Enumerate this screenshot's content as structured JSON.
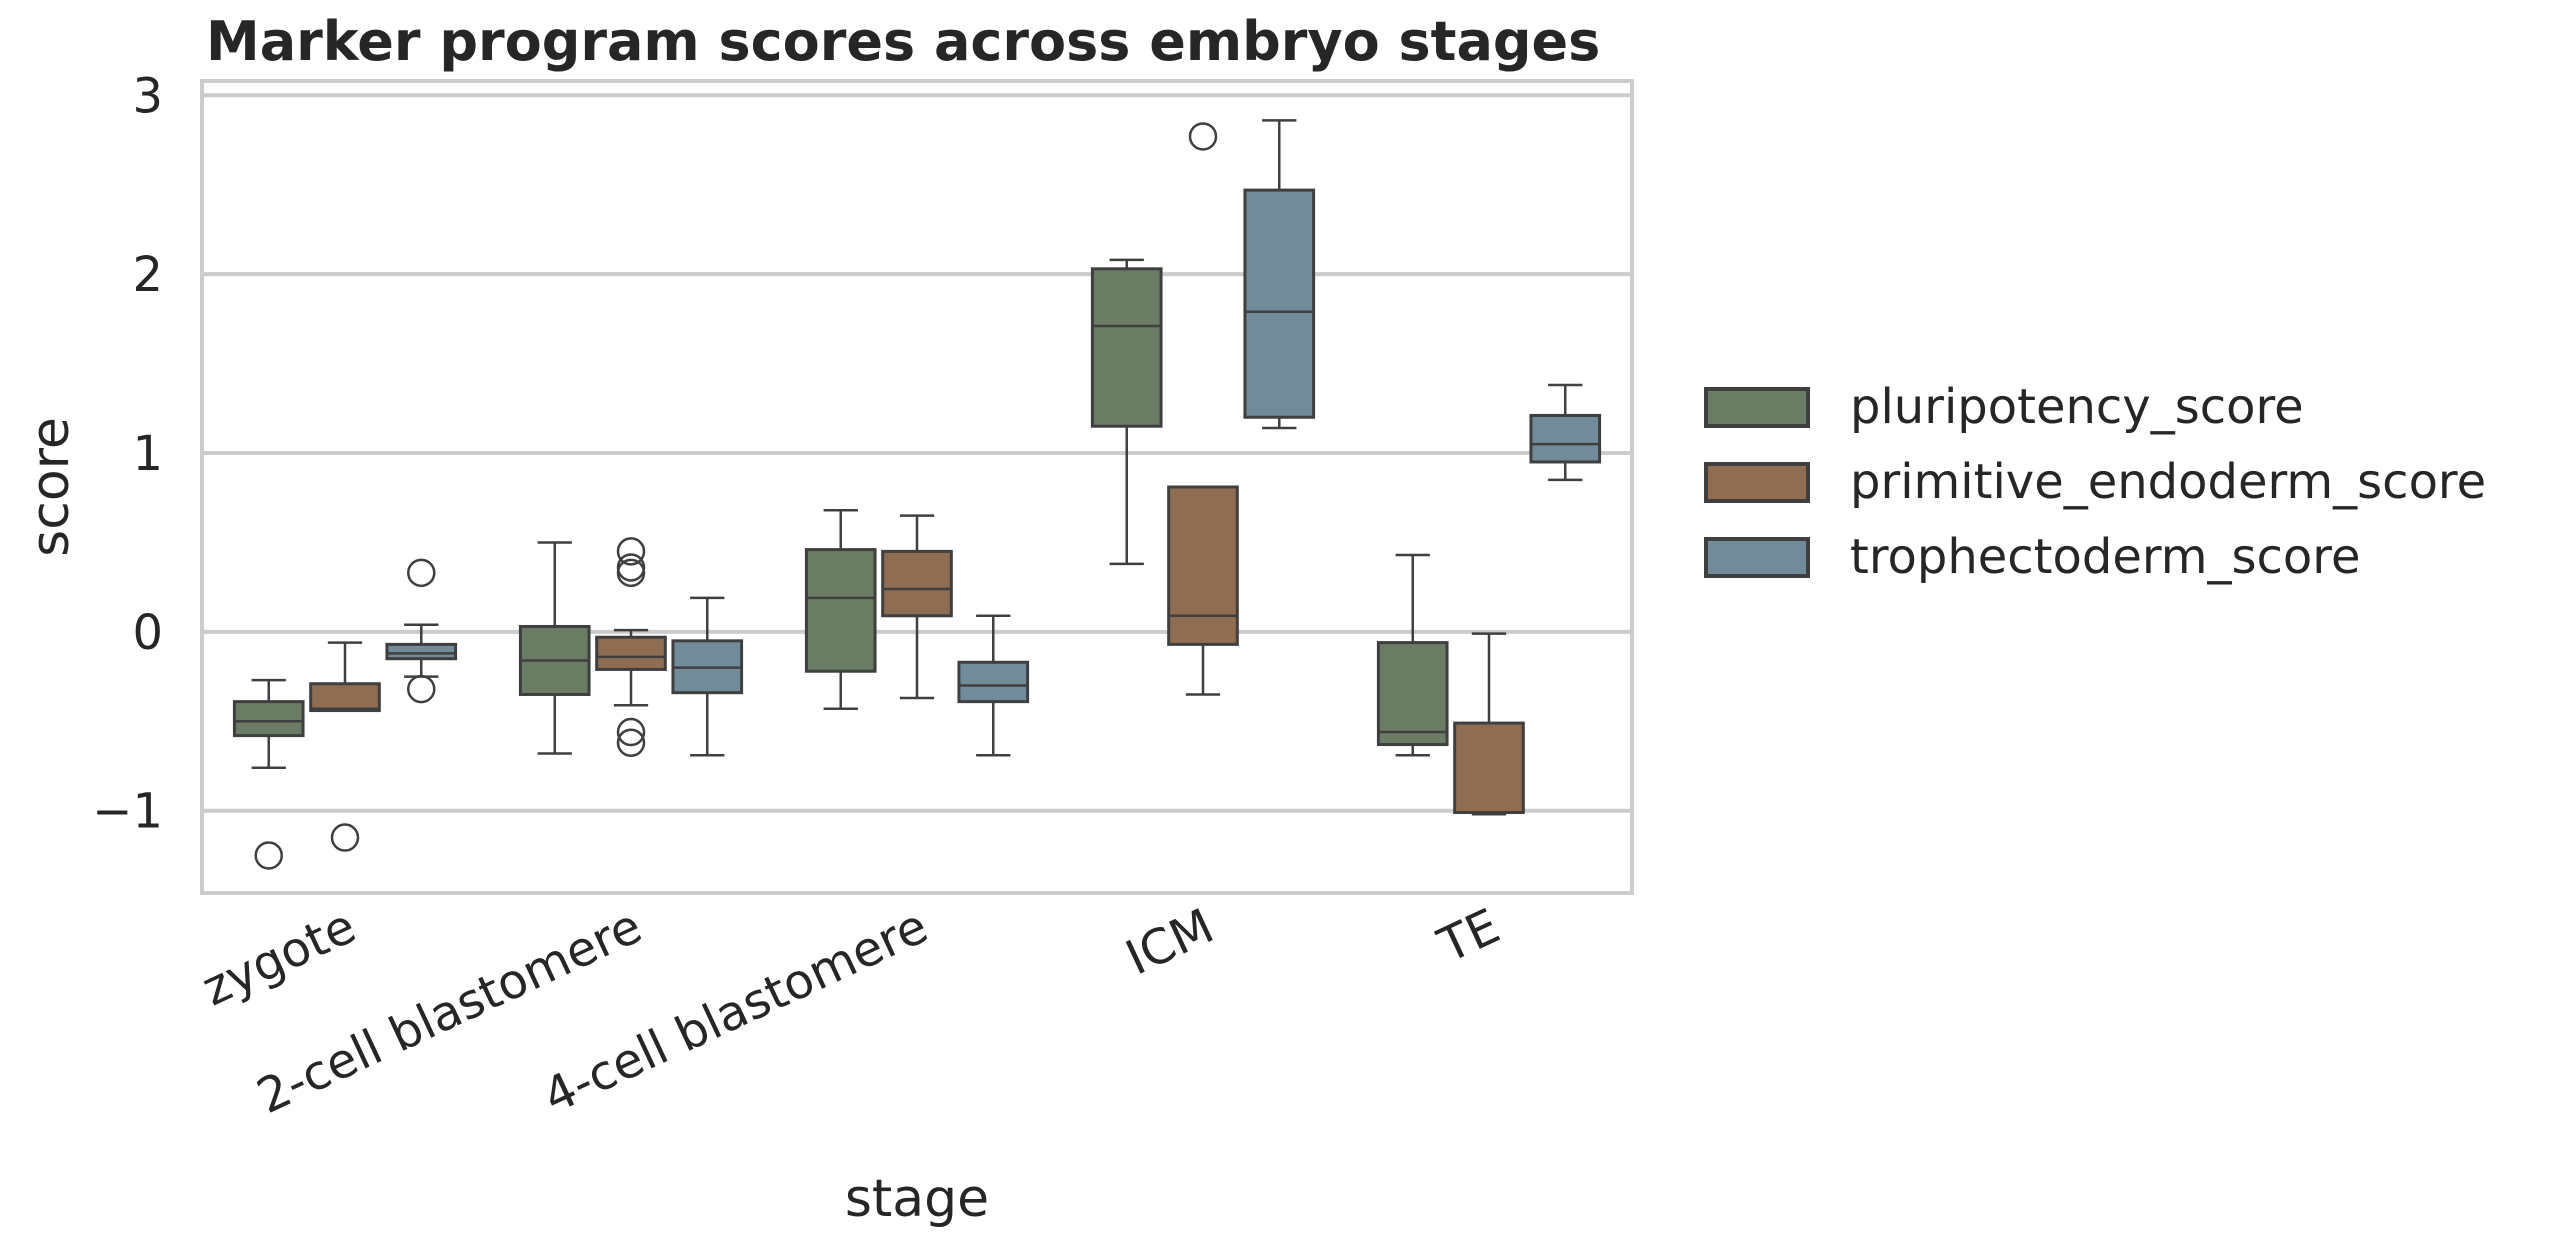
{
  "chart_data": {
    "type": "box",
    "title": "Marker program scores across embryo stages",
    "xlabel": "stage",
    "ylabel": "score",
    "ylim": [
      -1.46,
      3.08
    ],
    "yticks": [
      -1,
      0,
      1,
      2,
      3
    ],
    "ytick_labels": [
      "−1",
      "0",
      "1",
      "2",
      "3"
    ],
    "grid": "horizontal",
    "legend_position": "right",
    "categories": [
      "zygote",
      "2-cell blastomere",
      "4-cell blastomere",
      "ICM",
      "TE"
    ],
    "series": [
      {
        "name": "pluripotency_score",
        "color": "#6b7c65",
        "boxes": [
          {
            "whislo": -0.76,
            "q1": -0.58,
            "med": -0.5,
            "q3": -0.39,
            "whishi": -0.27,
            "fliers": [
              -1.25
            ]
          },
          {
            "whislo": -0.68,
            "q1": -0.35,
            "med": -0.16,
            "q3": 0.03,
            "whishi": 0.5,
            "fliers": []
          },
          {
            "whislo": -0.43,
            "q1": -0.22,
            "med": 0.19,
            "q3": 0.46,
            "whishi": 0.68,
            "fliers": []
          },
          {
            "whislo": 0.38,
            "q1": 1.15,
            "med": 1.71,
            "q3": 2.03,
            "whishi": 2.08,
            "fliers": []
          },
          {
            "whislo": -0.69,
            "q1": -0.63,
            "med": -0.56,
            "q3": -0.06,
            "whishi": 0.43,
            "fliers": []
          }
        ]
      },
      {
        "name": "primitive_endoderm_score",
        "color": "#8e6d52",
        "boxes": [
          {
            "whislo": -0.44,
            "q1": -0.44,
            "med": -0.43,
            "q3": -0.29,
            "whishi": -0.06,
            "fliers": [
              -1.15
            ]
          },
          {
            "whislo": -0.41,
            "q1": -0.21,
            "med": -0.14,
            "q3": -0.03,
            "whishi": 0.01,
            "fliers": [
              0.45,
              0.36,
              0.33,
              -0.56,
              -0.62
            ]
          },
          {
            "whislo": -0.37,
            "q1": 0.09,
            "med": 0.24,
            "q3": 0.45,
            "whishi": 0.65,
            "fliers": []
          },
          {
            "whislo": -0.35,
            "q1": -0.07,
            "med": 0.09,
            "q3": 0.81,
            "whishi": 0.81,
            "fliers": [
              2.77
            ]
          },
          {
            "whislo": -1.02,
            "q1": -1.01,
            "med": -1.01,
            "q3": -0.51,
            "whishi": -0.01,
            "fliers": []
          }
        ]
      },
      {
        "name": "trophectoderm_score",
        "color": "#728b9a",
        "boxes": [
          {
            "whislo": -0.25,
            "q1": -0.15,
            "med": -0.12,
            "q3": -0.07,
            "whishi": 0.04,
            "fliers": [
              0.33,
              -0.32
            ]
          },
          {
            "whislo": -0.69,
            "q1": -0.34,
            "med": -0.2,
            "q3": -0.05,
            "whishi": 0.19,
            "fliers": []
          },
          {
            "whislo": -0.69,
            "q1": -0.39,
            "med": -0.3,
            "q3": -0.17,
            "whishi": 0.09,
            "fliers": []
          },
          {
            "whislo": 1.14,
            "q1": 1.2,
            "med": 1.79,
            "q3": 2.47,
            "whishi": 2.86,
            "fliers": []
          },
          {
            "whislo": 0.85,
            "q1": 0.95,
            "med": 1.05,
            "q3": 1.21,
            "whishi": 1.38,
            "fliers": []
          }
        ]
      }
    ]
  }
}
